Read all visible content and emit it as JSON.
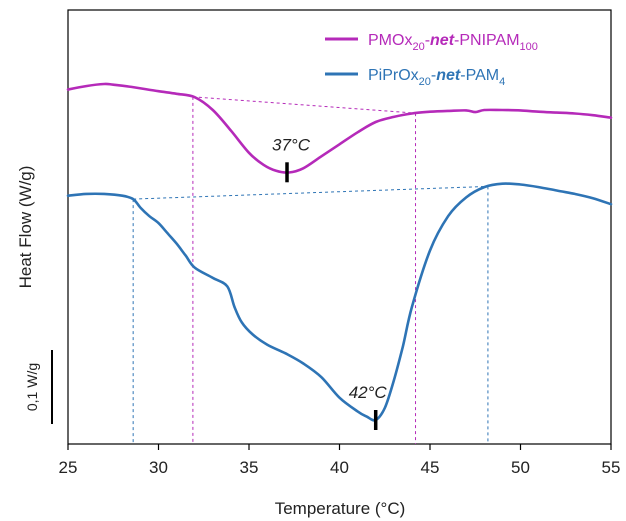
{
  "chart_data": {
    "type": "line",
    "xlabel": "Temperature (°C)",
    "ylabel": "Heat Flow (W/g)",
    "xlim": [
      25,
      55
    ],
    "x_ticks": [
      25,
      30,
      35,
      40,
      45,
      50,
      55
    ],
    "grid": false,
    "legend_position": "top-right",
    "scale_bar_label": "0,1 W/g",
    "series": [
      {
        "legend": {
          "prefix": "PMOx",
          "sub1": "20",
          "dash": "-",
          "italic": "net",
          "mid": "-PNIPAM",
          "sub2": "100"
        },
        "color": "#b52ab9",
        "x": [
          25,
          26,
          27,
          27.5,
          28.5,
          30,
          31,
          32,
          33,
          34,
          35,
          35.8,
          36.5,
          37.2,
          38,
          39,
          40,
          41,
          42,
          43,
          44,
          45,
          46,
          47,
          47.5,
          48,
          49,
          50,
          51,
          52,
          53,
          54,
          55
        ],
        "y": [
          0.72,
          0.74,
          0.752,
          0.748,
          0.735,
          0.71,
          0.695,
          0.675,
          0.6,
          0.48,
          0.35,
          0.28,
          0.245,
          0.235,
          0.26,
          0.33,
          0.4,
          0.47,
          0.53,
          0.56,
          0.58,
          0.59,
          0.595,
          0.598,
          0.588,
          0.6,
          0.6,
          0.598,
          0.59,
          0.585,
          0.58,
          0.57,
          0.555
        ],
        "peak": {
          "x": 37.1,
          "label": "37°C"
        },
        "onset_end": [
          31.9,
          44.2
        ]
      },
      {
        "legend": {
          "prefix": "PiPrOx",
          "sub1": "20",
          "dash": "-",
          "italic": "net",
          "mid": "-PAM",
          "sub2": "4"
        },
        "color": "#2e74b5",
        "x": [
          25,
          26,
          27,
          28,
          28.6,
          29,
          29.5,
          30,
          30.5,
          31,
          31.5,
          32,
          33,
          33.8,
          34.2,
          34.6,
          35.2,
          36,
          37,
          38,
          39,
          40,
          41,
          41.5,
          42,
          42.5,
          43,
          43.5,
          44,
          45,
          46,
          47,
          48,
          49,
          50,
          51,
          52,
          53,
          54,
          55
        ],
        "y": [
          0.1,
          0.11,
          0.11,
          0.1,
          0.08,
          0.03,
          -0.02,
          -0.06,
          -0.12,
          -0.18,
          -0.25,
          -0.32,
          -0.38,
          -0.43,
          -0.55,
          -0.64,
          -0.71,
          -0.77,
          -0.82,
          -0.88,
          -0.96,
          -1.08,
          -1.16,
          -1.19,
          -1.21,
          -1.14,
          -0.98,
          -0.78,
          -0.55,
          -0.22,
          -0.02,
          0.09,
          0.15,
          0.17,
          0.165,
          0.15,
          0.13,
          0.11,
          0.085,
          0.05
        ],
        "peak": {
          "x": 42.0,
          "label": "42°C"
        },
        "onset_end": [
          28.6,
          48.2
        ]
      }
    ]
  }
}
